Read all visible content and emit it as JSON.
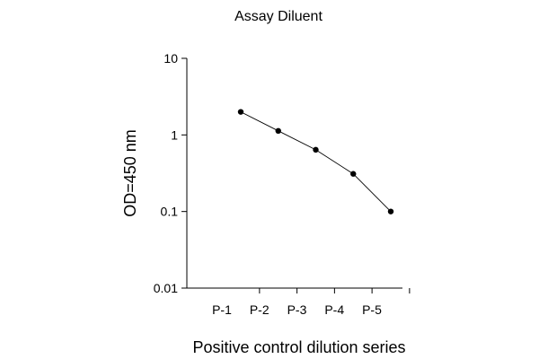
{
  "chart_data": {
    "type": "line",
    "title": "Assay Diluent",
    "xlabel": "Positive control dilution series",
    "ylabel": "OD=450 nm",
    "y_scale": "log",
    "ylim": [
      0.01,
      10
    ],
    "y_ticks": [
      "0.01",
      "0.1",
      "1",
      "10"
    ],
    "categories": [
      "P-1",
      "P-2",
      "P-3",
      "P-4",
      "P-5"
    ],
    "values": [
      2.0,
      1.13,
      0.64,
      0.31,
      0.1
    ],
    "grid": false,
    "legend": "none",
    "colors": {
      "line": "#000000",
      "marker": "#000000"
    }
  }
}
